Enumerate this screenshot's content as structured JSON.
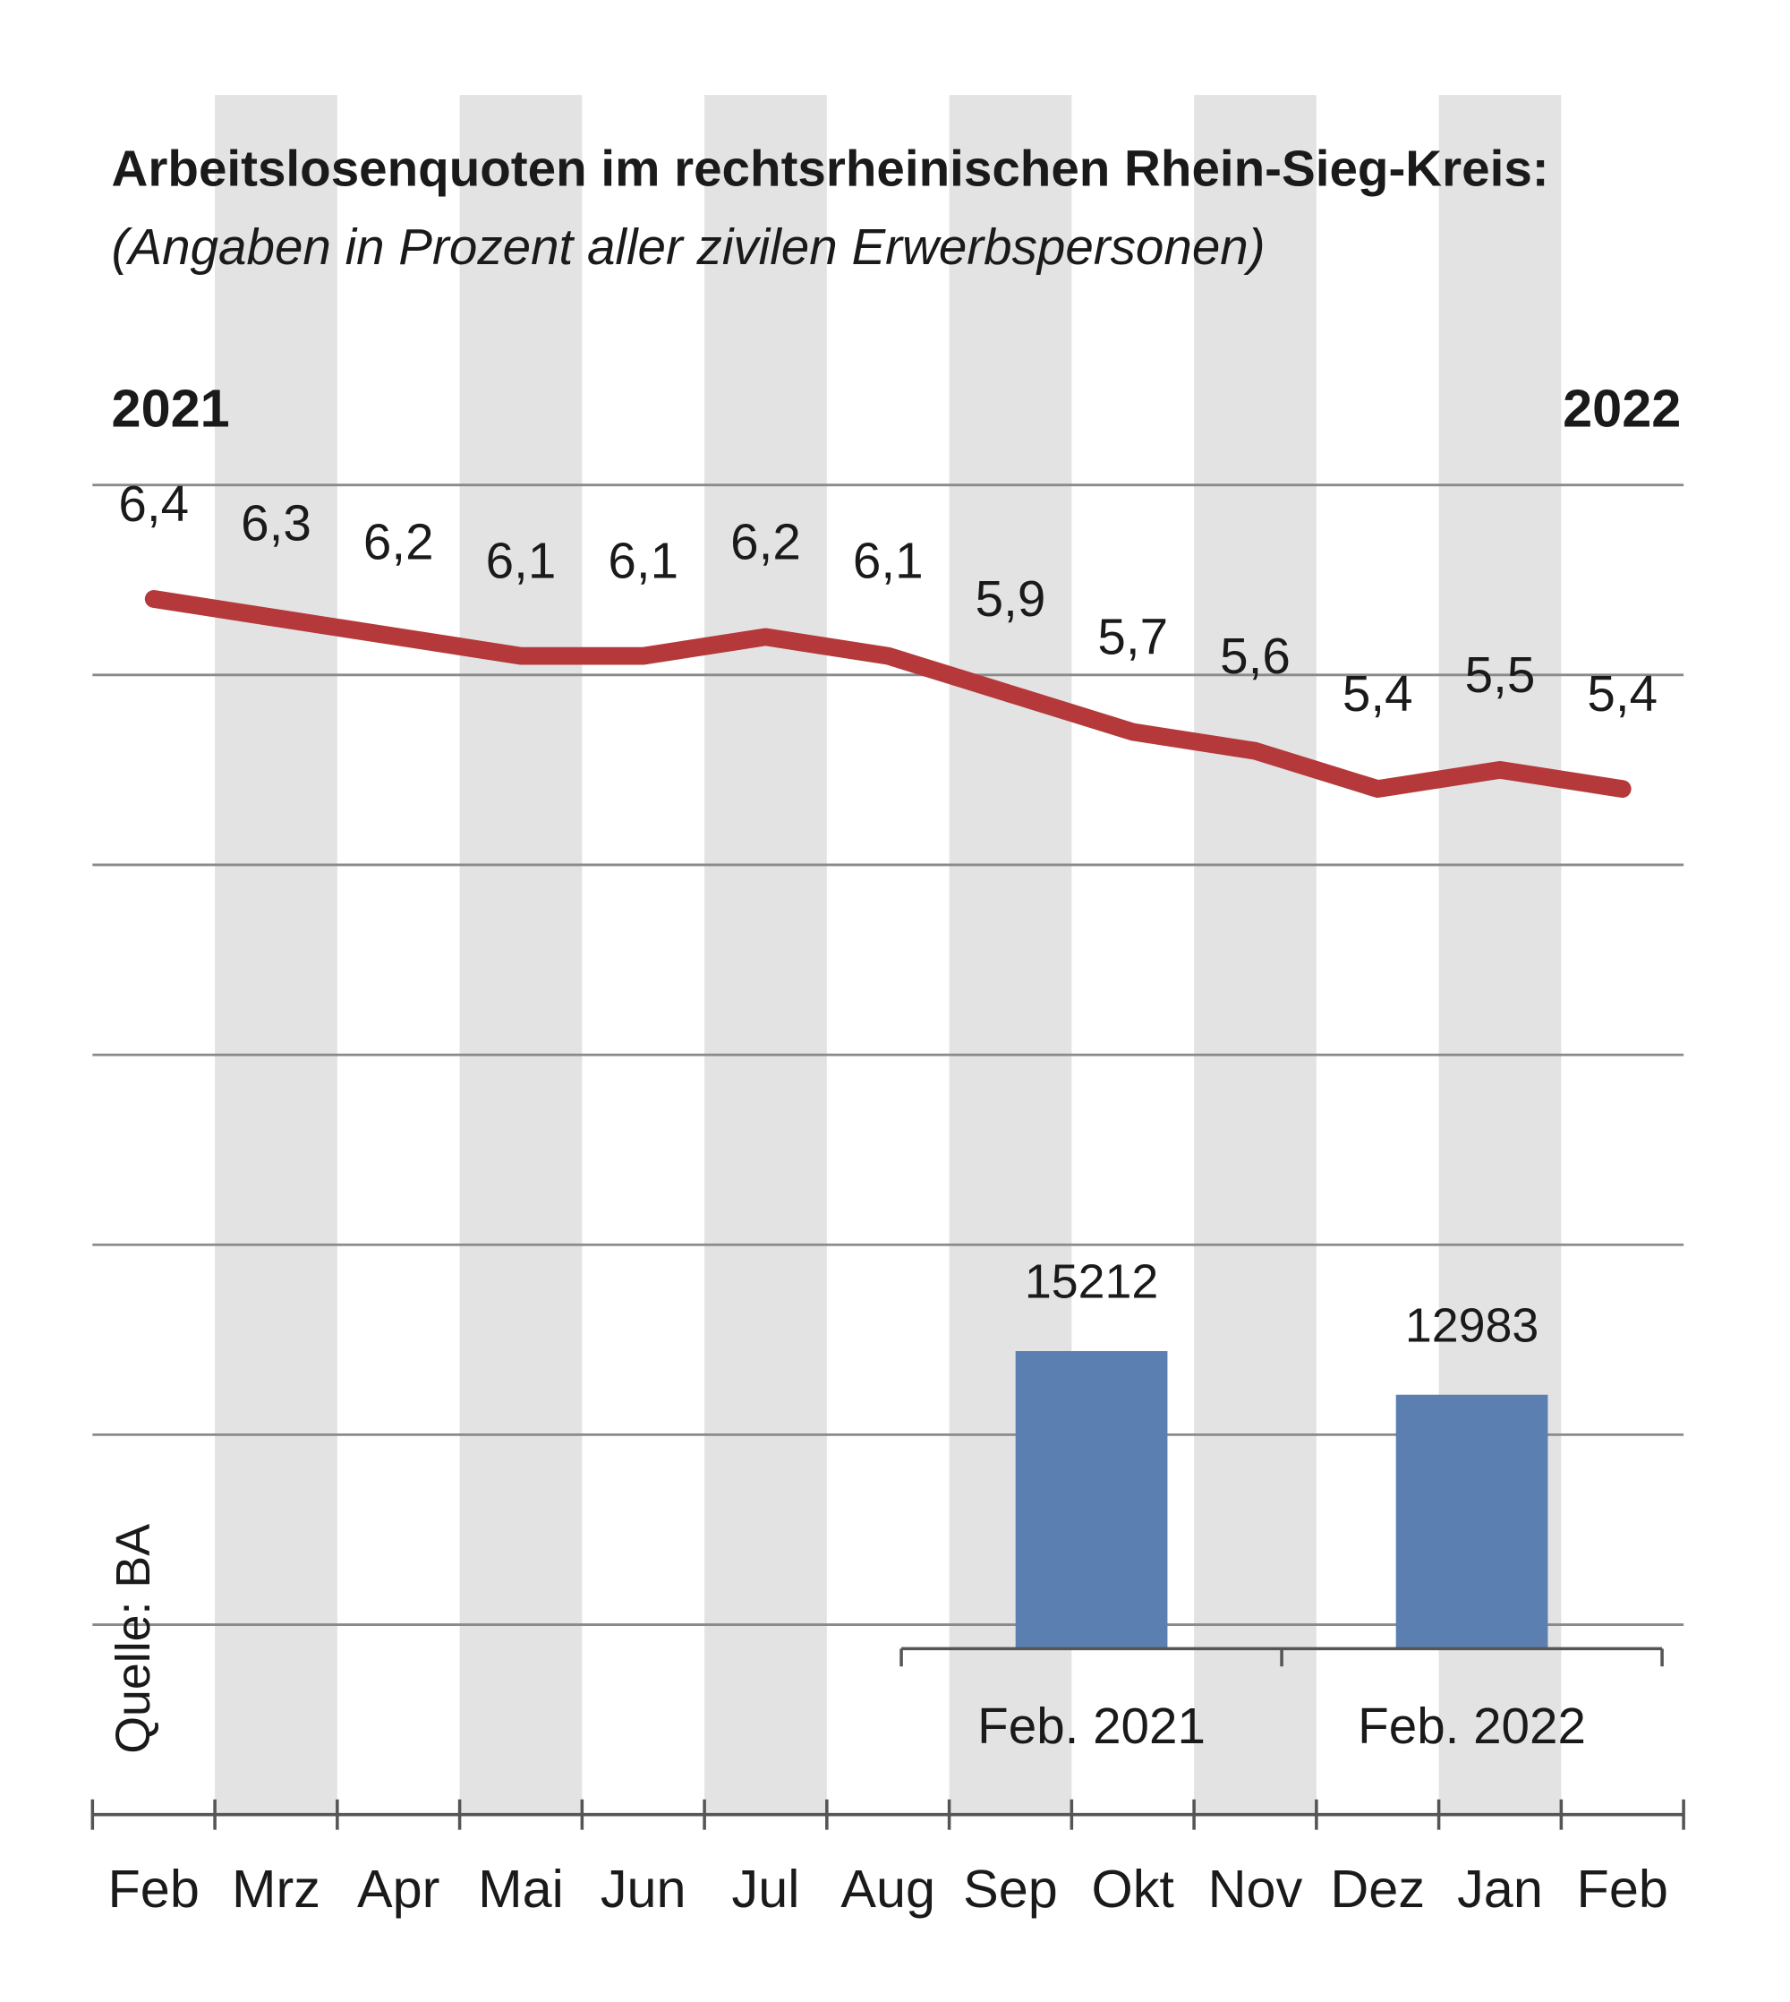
{
  "chart_data": [
    {
      "type": "line",
      "title": "Arbeitslosenquoten im rechtsrheinischen Rhein-Sieg-Kreis:",
      "subtitle": "(Angaben in Prozent aller zivilen Erwerbspersonen)",
      "annotations": [
        "2021",
        "2022"
      ],
      "source": "Quelle: BA",
      "categories": [
        "Feb",
        "Mrz",
        "Apr",
        "Mai",
        "Jun",
        "Jul",
        "Aug",
        "Sep",
        "Okt",
        "Nov",
        "Dez",
        "Jan",
        "Feb"
      ],
      "values": [
        6.4,
        6.3,
        6.2,
        6.1,
        6.1,
        6.2,
        6.1,
        5.9,
        5.7,
        5.6,
        5.4,
        5.5,
        5.4
      ],
      "value_labels": [
        "6,4",
        "6,3",
        "6,2",
        "6,1",
        "6,1",
        "6,2",
        "6,1",
        "5,9",
        "5,7",
        "5,6",
        "5,4",
        "5,5",
        "5,4"
      ],
      "color": "#b5393a",
      "ylim": [
        0,
        7
      ],
      "yticks": [
        1,
        2,
        3,
        4,
        5,
        6,
        7
      ],
      "grid": true
    },
    {
      "type": "bar",
      "categories": [
        "Feb. 2021",
        "Feb. 2022"
      ],
      "values": [
        15212,
        12983
      ],
      "color": "#5b7fb0",
      "ylim": [
        0,
        20000
      ]
    }
  ]
}
